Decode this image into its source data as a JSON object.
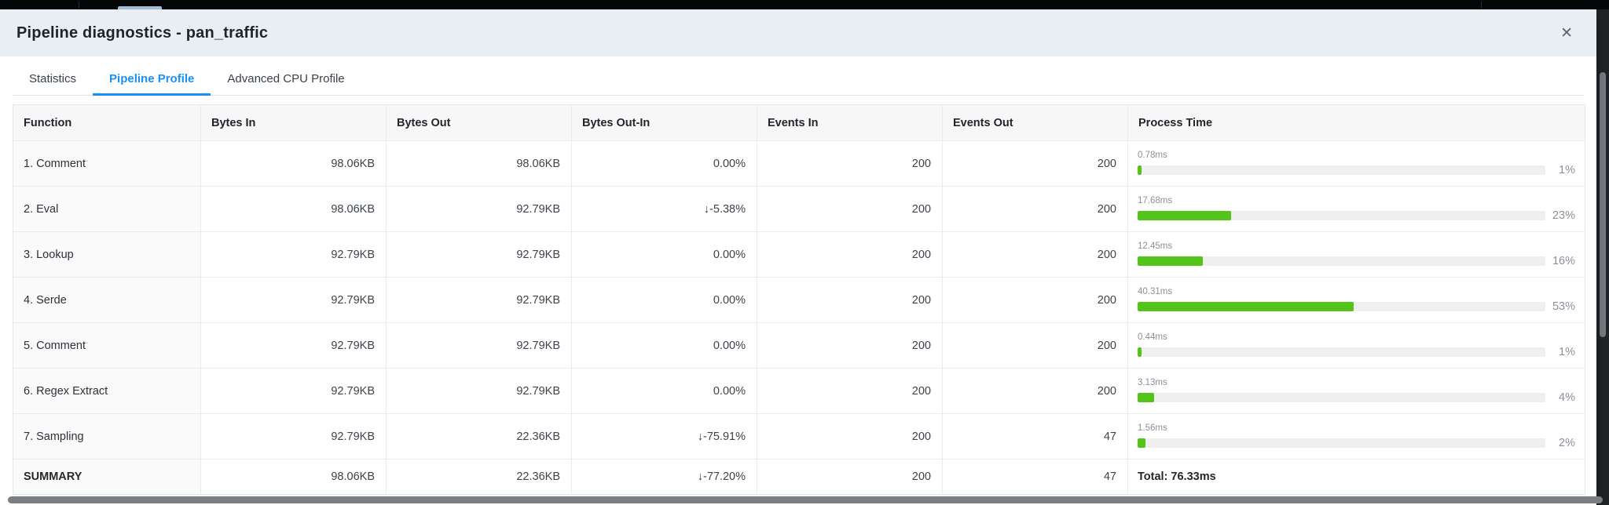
{
  "modal": {
    "title": "Pipeline diagnostics - pan_traffic",
    "close_icon": "✕",
    "tabs": [
      {
        "label": "Statistics",
        "active": false
      },
      {
        "label": "Pipeline Profile",
        "active": true
      },
      {
        "label": "Advanced CPU Profile",
        "active": false
      }
    ]
  },
  "table": {
    "columns": [
      "Function",
      "Bytes In",
      "Bytes Out",
      "Bytes Out-In",
      "Events In",
      "Events Out",
      "Process Time"
    ],
    "rows": [
      {
        "function": "1. Comment",
        "bytes_in": "98.06KB",
        "bytes_out": "98.06KB",
        "bytes_out_in": "0.00%",
        "events_in": "200",
        "events_out": "200",
        "time_label": "0.78ms",
        "time_pct": 1,
        "pct_label": "1%"
      },
      {
        "function": "2. Eval",
        "bytes_in": "98.06KB",
        "bytes_out": "92.79KB",
        "bytes_out_in": "↓-5.38%",
        "events_in": "200",
        "events_out": "200",
        "time_label": "17.68ms",
        "time_pct": 23,
        "pct_label": "23%"
      },
      {
        "function": "3. Lookup",
        "bytes_in": "92.79KB",
        "bytes_out": "92.79KB",
        "bytes_out_in": "0.00%",
        "events_in": "200",
        "events_out": "200",
        "time_label": "12.45ms",
        "time_pct": 16,
        "pct_label": "16%"
      },
      {
        "function": "4. Serde",
        "bytes_in": "92.79KB",
        "bytes_out": "92.79KB",
        "bytes_out_in": "0.00%",
        "events_in": "200",
        "events_out": "200",
        "time_label": "40.31ms",
        "time_pct": 53,
        "pct_label": "53%"
      },
      {
        "function": "5. Comment",
        "bytes_in": "92.79KB",
        "bytes_out": "92.79KB",
        "bytes_out_in": "0.00%",
        "events_in": "200",
        "events_out": "200",
        "time_label": "0.44ms",
        "time_pct": 1,
        "pct_label": "1%"
      },
      {
        "function": "6. Regex Extract",
        "bytes_in": "92.79KB",
        "bytes_out": "92.79KB",
        "bytes_out_in": "0.00%",
        "events_in": "200",
        "events_out": "200",
        "time_label": "3.13ms",
        "time_pct": 4,
        "pct_label": "4%"
      },
      {
        "function": "7. Sampling",
        "bytes_in": "92.79KB",
        "bytes_out": "22.36KB",
        "bytes_out_in": "↓-75.91%",
        "events_in": "200",
        "events_out": "47",
        "time_label": "1.56ms",
        "time_pct": 2,
        "pct_label": "2%"
      }
    ],
    "summary": {
      "function": "SUMMARY",
      "bytes_in": "98.06KB",
      "bytes_out": "22.36KB",
      "bytes_out_in": "↓-77.20%",
      "events_in": "200",
      "events_out": "47",
      "total_label": "Total: 76.33ms"
    }
  },
  "colors": {
    "accent_blue": "#1890f8",
    "bar_green": "#52c41a",
    "bar_track": "#efefef",
    "modal_header_bg": "#e8eef4"
  }
}
